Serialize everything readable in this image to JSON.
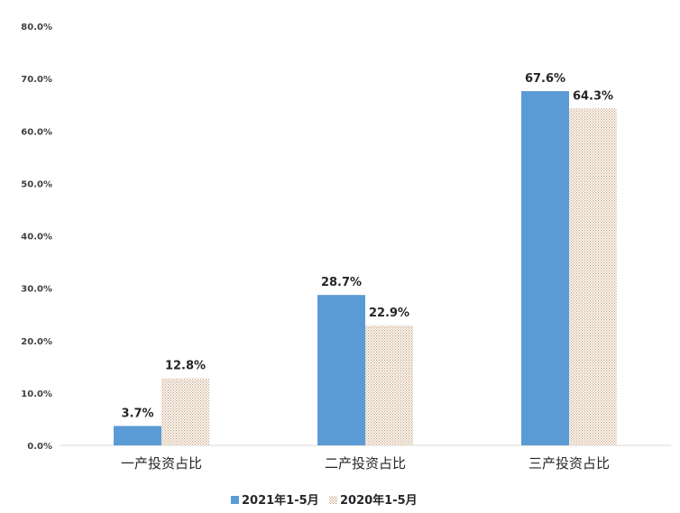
{
  "chart_data": {
    "type": "bar",
    "categories": [
      "一产投资占比",
      "二产投资占比",
      "三产投资占比"
    ],
    "series": [
      {
        "name": "2021年1-5月",
        "values": [
          3.7,
          28.7,
          67.6
        ],
        "color": "#5B9BD5",
        "pattern": "solid"
      },
      {
        "name": "2020年1-5月",
        "values": [
          12.8,
          22.9,
          64.3
        ],
        "color": "#C9A07A",
        "pattern": "dotted"
      }
    ],
    "data_labels": [
      [
        "3.7%",
        "28.7%",
        "67.6%"
      ],
      [
        "12.8%",
        "22.9%",
        "64.3%"
      ]
    ],
    "yticks": [
      "0.0%",
      "10.0%",
      "20.0%",
      "30.0%",
      "40.0%",
      "50.0%",
      "60.0%",
      "70.0%",
      "80.0%"
    ],
    "ylim": [
      0,
      80
    ],
    "title": "",
    "xlabel": "",
    "ylabel": "",
    "grid": false,
    "legend_position": "bottom"
  }
}
